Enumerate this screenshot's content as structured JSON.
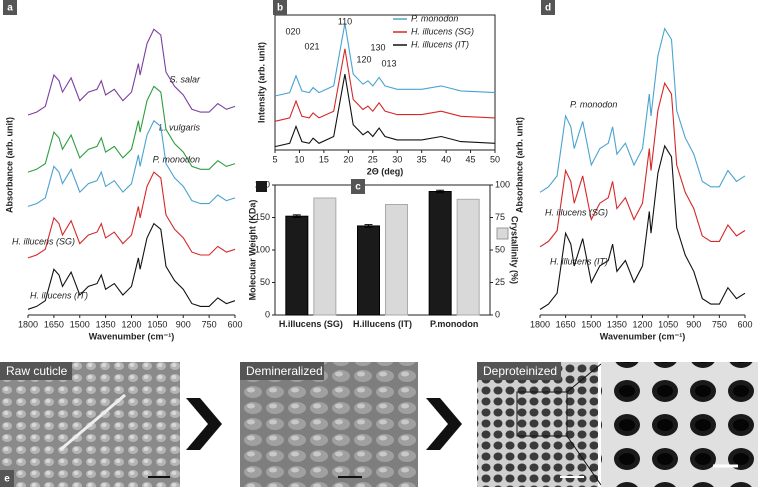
{
  "chart_data": [
    {
      "type": "line",
      "label": "a",
      "xlabel": "Wavenumber (cm⁻¹)",
      "ylabel": "Absorbance (arb. unit)",
      "xlim": [
        1800,
        600
      ],
      "xticks": [
        1800,
        1650,
        1500,
        1350,
        1200,
        1050,
        900,
        750,
        600
      ],
      "ylim": [
        0,
        105
      ],
      "x": [
        1800,
        1750,
        1700,
        1650,
        1620,
        1600,
        1550,
        1500,
        1450,
        1400,
        1375,
        1350,
        1300,
        1250,
        1200,
        1160,
        1150,
        1110,
        1070,
        1030,
        1000,
        950,
        900,
        850,
        800,
        750,
        700,
        650,
        600
      ],
      "series": [
        {
          "name": "S. salar",
          "color": "#7b3f9e",
          "values": [
            70,
            71,
            73,
            84,
            82,
            78,
            83,
            75,
            78,
            79,
            82,
            77,
            79,
            75,
            78,
            88,
            84,
            95,
            100,
            98,
            85,
            80,
            77,
            72,
            71,
            71,
            74,
            72,
            73
          ]
        },
        {
          "name": "L. vulgaris",
          "color": "#2e9e3e",
          "values": [
            50,
            51,
            53,
            64,
            62,
            58,
            63,
            55,
            58,
            59,
            62,
            57,
            59,
            55,
            58,
            68,
            64,
            75,
            80,
            78,
            65,
            60,
            57,
            52,
            51,
            51,
            54,
            52,
            53
          ]
        },
        {
          "name": "P. monodon",
          "color": "#4aa3d0",
          "values": [
            38,
            39,
            41,
            52,
            50,
            46,
            51,
            43,
            46,
            47,
            50,
            45,
            47,
            43,
            46,
            56,
            52,
            63,
            68,
            66,
            53,
            48,
            45,
            40,
            39,
            39,
            42,
            40,
            41
          ]
        },
        {
          "name": "H. illucens (SG)",
          "color": "#d62728",
          "values": [
            20,
            21,
            23,
            34,
            32,
            28,
            33,
            25,
            28,
            29,
            32,
            27,
            29,
            25,
            28,
            38,
            34,
            45,
            50,
            48,
            35,
            30,
            27,
            22,
            21,
            21,
            24,
            22,
            23
          ]
        },
        {
          "name": "H. illucens (IT)",
          "color": "#111111",
          "values": [
            2,
            3,
            5,
            16,
            14,
            10,
            15,
            7,
            10,
            11,
            14,
            9,
            11,
            7,
            10,
            20,
            16,
            27,
            32,
            30,
            17,
            12,
            9,
            4,
            3,
            3,
            6,
            4,
            5
          ]
        }
      ]
    },
    {
      "type": "line",
      "label": "b",
      "xlabel": "2Θ (deg)",
      "ylabel": "Intensity (arb. unit)",
      "xlim": [
        5,
        50
      ],
      "xticks": [
        5,
        10,
        15,
        20,
        25,
        30,
        35,
        40,
        45,
        50
      ],
      "ylim": [
        0,
        80
      ],
      "legend": "upper right",
      "annotations": [
        "020",
        "021",
        "110",
        "120",
        "130",
        "013"
      ],
      "x": [
        5,
        8,
        9.3,
        10.5,
        12,
        12.8,
        14,
        17,
        19.3,
        21,
        23,
        24,
        25,
        26.3,
        27.5,
        30,
        35,
        39,
        43,
        50
      ],
      "series": [
        {
          "name": "P. monodon",
          "color": "#4aa3d0",
          "values": [
            32,
            34,
            44,
            35,
            34,
            37,
            34,
            38,
            75,
            45,
            39,
            41,
            38,
            43,
            38,
            36,
            36,
            38,
            35,
            34
          ]
        },
        {
          "name": "H. illucens (SG)",
          "color": "#d62728",
          "values": [
            17,
            19,
            29,
            20,
            19,
            22,
            19,
            23,
            60,
            30,
            24,
            26,
            23,
            28,
            23,
            21,
            21,
            23,
            20,
            19
          ]
        },
        {
          "name": "H. illucens (IT)",
          "color": "#111111",
          "values": [
            2,
            4,
            14,
            5,
            4,
            7,
            4,
            8,
            45,
            15,
            9,
            11,
            8,
            13,
            8,
            6,
            6,
            8,
            5,
            4
          ]
        }
      ]
    },
    {
      "type": "bar",
      "label": "c",
      "categories": [
        "H.illucens (SG)",
        "H.illucens (IT)",
        "P.monodon"
      ],
      "ylim": [
        0,
        200
      ],
      "yticks": [
        0,
        50,
        100,
        150,
        200
      ],
      "y2lim": [
        0,
        100
      ],
      "y2ticks": [
        0,
        25,
        50,
        75,
        100
      ],
      "series": [
        {
          "name": "Molecular Weight (KDa)",
          "color": "#1a1a1a",
          "values": [
            152,
            137,
            190
          ],
          "errors": [
            2,
            2,
            2
          ]
        },
        {
          "name": "Crystallinity (%)",
          "color": "#d9d9d9",
          "values": [
            90,
            85,
            89
          ],
          "axis": "y2"
        }
      ]
    },
    {
      "type": "line",
      "label": "d",
      "xlabel": "Wavenumber (cm⁻¹)",
      "ylabel": "Absorbance (arb. unit)",
      "xlim": [
        1800,
        600
      ],
      "xticks": [
        1800,
        1650,
        1500,
        1350,
        1200,
        1050,
        900,
        750,
        600
      ],
      "ylim": [
        0,
        110
      ],
      "x": [
        1800,
        1750,
        1700,
        1650,
        1620,
        1600,
        1550,
        1500,
        1450,
        1400,
        1375,
        1350,
        1300,
        1250,
        1200,
        1160,
        1150,
        1110,
        1070,
        1030,
        1000,
        950,
        900,
        850,
        800,
        750,
        700,
        650,
        600
      ],
      "series": [
        {
          "name": "P. monodon",
          "color": "#4aa3d0",
          "values": [
            45,
            47,
            51,
            73,
            69,
            61,
            71,
            55,
            61,
            63,
            69,
            59,
            63,
            55,
            61,
            81,
            73,
            95,
            105,
            101,
            75,
            65,
            59,
            49,
            47,
            47,
            53,
            49,
            51
          ]
        },
        {
          "name": "H. illucens (SG)",
          "color": "#d62728",
          "values": [
            25,
            27,
            31,
            53,
            49,
            41,
            51,
            35,
            41,
            43,
            49,
            39,
            43,
            35,
            41,
            61,
            53,
            75,
            85,
            81,
            55,
            45,
            39,
            29,
            27,
            27,
            33,
            29,
            31
          ]
        },
        {
          "name": "H. illucens (IT)",
          "color": "#111111",
          "values": [
            2,
            4,
            8,
            30,
            26,
            18,
            28,
            12,
            18,
            20,
            26,
            16,
            20,
            12,
            18,
            38,
            30,
            52,
            62,
            58,
            32,
            22,
            16,
            6,
            4,
            4,
            10,
            6,
            8
          ]
        }
      ]
    }
  ],
  "images": {
    "label": "e",
    "captions": [
      "Raw cuticle",
      "Demineralized",
      "Deproteinized"
    ]
  }
}
